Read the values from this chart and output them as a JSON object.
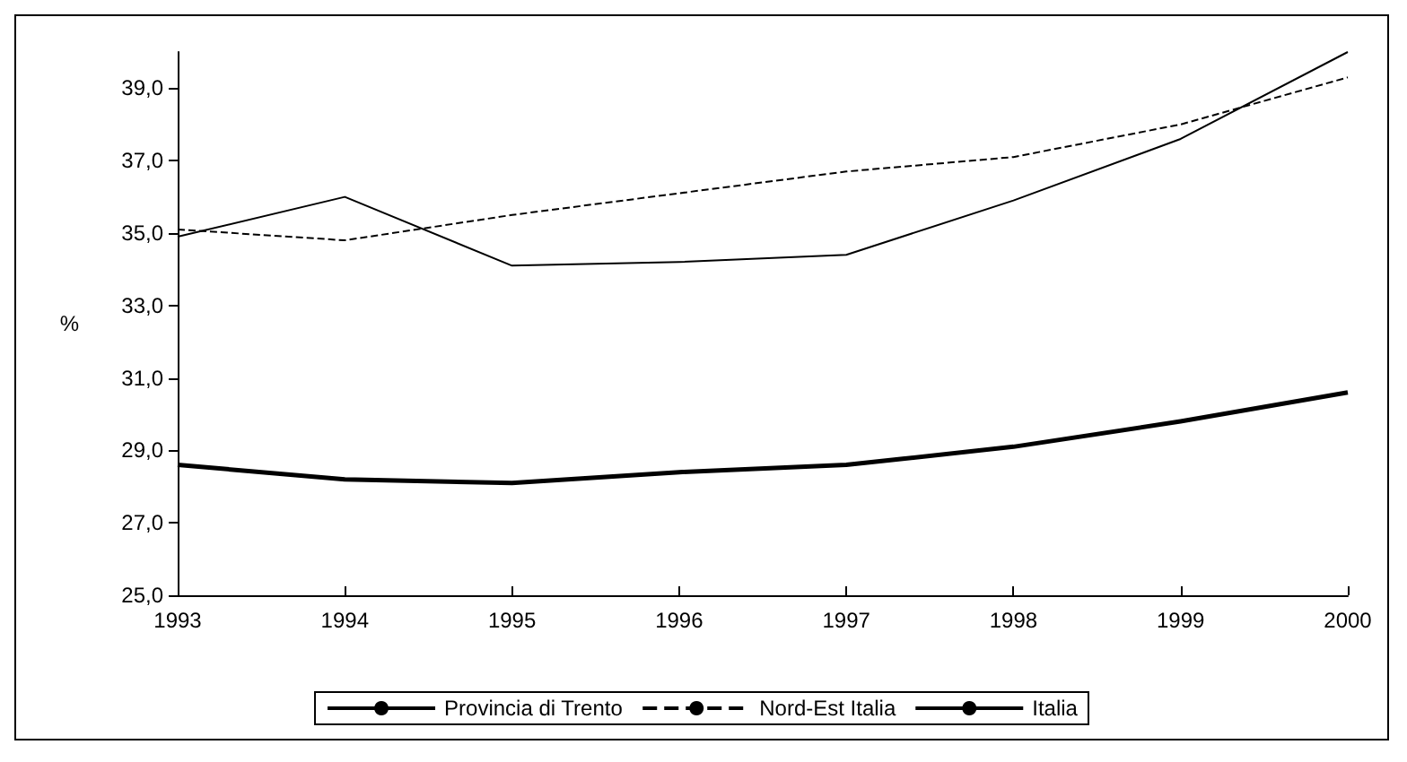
{
  "chart_data": {
    "type": "line",
    "ylabel": "%",
    "categories": [
      "1993",
      "1994",
      "1995",
      "1996",
      "1997",
      "1998",
      "1999",
      "2000"
    ],
    "series": [
      {
        "name": "Provincia di Trento",
        "color": "#000000",
        "line_style": "solid",
        "values": [
          34.9,
          36.0,
          34.1,
          34.2,
          34.4,
          35.9,
          37.6,
          40.0
        ]
      },
      {
        "name": "Nord-Est Italia",
        "color": "#000000",
        "line_style": "dashed",
        "values": [
          35.1,
          34.8,
          35.5,
          36.1,
          36.7,
          37.1,
          38.0,
          39.3
        ]
      },
      {
        "name": "Italia",
        "color": "#000000",
        "line_style": "solid",
        "values": [
          28.6,
          28.2,
          28.1,
          28.4,
          28.6,
          29.1,
          29.8,
          30.6
        ]
      }
    ],
    "ylim": [
      25,
      40
    ],
    "yticks": [
      {
        "value": 25,
        "label": "25,0"
      },
      {
        "value": 27,
        "label": "27,0"
      },
      {
        "value": 29,
        "label": "29,0"
      },
      {
        "value": 31,
        "label": "31,0"
      },
      {
        "value": 33,
        "label": "33,0"
      },
      {
        "value": 35,
        "label": "35,0"
      },
      {
        "value": 37,
        "label": "37,0"
      },
      {
        "value": 39,
        "label": "39,0"
      }
    ],
    "grid": false,
    "legend": "bottom",
    "marker": "none"
  }
}
